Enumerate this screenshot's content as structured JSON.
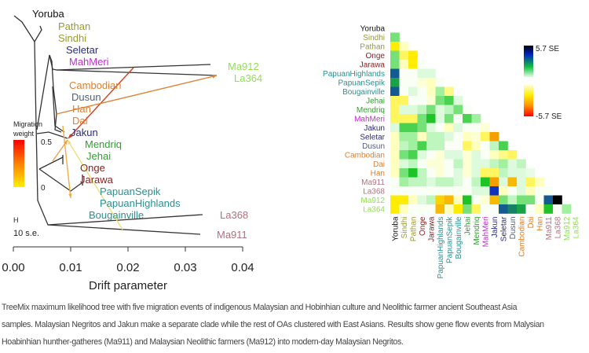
{
  "tree": {
    "leaves": [
      {
        "name": "Yoruba",
        "color": "#111111"
      },
      {
        "name": "Pathan",
        "color": "#9a9a30"
      },
      {
        "name": "Sindhi",
        "color": "#9a9a30"
      },
      {
        "name": "Seletar",
        "color": "#2a2a80"
      },
      {
        "name": "MahMeri",
        "color": "#c030d0"
      },
      {
        "name": "Ma912",
        "color": "#90e050"
      },
      {
        "name": "La364",
        "color": "#90e050"
      },
      {
        "name": "Cambodian",
        "color": "#e08030"
      },
      {
        "name": "Dusun",
        "color": "#506080"
      },
      {
        "name": "Han",
        "color": "#e08030"
      },
      {
        "name": "Dai",
        "color": "#e08030"
      },
      {
        "name": "Jakun",
        "color": "#2a2a80"
      },
      {
        "name": "Mendriq",
        "color": "#30a030"
      },
      {
        "name": "Jehai",
        "color": "#30a030"
      },
      {
        "name": "Onge",
        "color": "#8b2020"
      },
      {
        "name": "Jarawa",
        "color": "#8b2020"
      },
      {
        "name": "PapuanSepik",
        "color": "#2a9090"
      },
      {
        "name": "PapuanHighlands",
        "color": "#2a9090"
      },
      {
        "name": "Bougainville",
        "color": "#2a9090"
      },
      {
        "name": "La368",
        "color": "#b07080"
      },
      {
        "name": "Ma911",
        "color": "#b07080"
      }
    ],
    "migration_legend": {
      "title_line1": "Migration",
      "title_line2": "weight",
      "max_label": "0.5",
      "min_label": "0",
      "colors": [
        "#ff0000",
        "#ff8000",
        "#ffee00"
      ]
    },
    "scale_bar": {
      "marker": "H",
      "label": "10 s.e."
    },
    "x_axis": {
      "label": "Drift parameter",
      "ticks": [
        "0.00",
        "0.01",
        "0.02",
        "0.03",
        "0.04"
      ]
    }
  },
  "heatmap": {
    "labels": [
      "Yoruba",
      "Sindhi",
      "Pathan",
      "Onge",
      "Jarawa",
      "PapuanHighlands",
      "PapuanSepik",
      "Bougainville",
      "Jehai",
      "Mendriq",
      "MahMeri",
      "Jakun",
      "Seletar",
      "Dusun",
      "Cambodian",
      "Dai",
      "Han",
      "Ma911",
      "La368",
      "Ma912",
      "La364"
    ],
    "label_colors": [
      "#111111",
      "#9a9a30",
      "#9a9a30",
      "#8b2020",
      "#8b2020",
      "#2a9090",
      "#2a9090",
      "#2a9090",
      "#30a030",
      "#30a030",
      "#c030d0",
      "#2a2a80",
      "#2a2a80",
      "#506080",
      "#e08030",
      "#e08030",
      "#e08030",
      "#b07080",
      "#b07080",
      "#90e050",
      "#90e050"
    ],
    "scale": {
      "max_label": "5.7 SE",
      "min_label": "-5.7 SE",
      "max": 5.7,
      "min": -5.7
    },
    "residuals": [
      [
        2
      ],
      [
        -1.5,
        -0.5
      ],
      [
        2,
        -1,
        -1.5
      ],
      [
        2,
        -0.5,
        -1.5,
        0
      ],
      [
        4.5,
        0,
        0,
        0.5,
        0.5
      ],
      [
        3.5,
        0,
        0,
        -0.3,
        -0.5,
        0
      ],
      [
        4.5,
        0,
        0.5,
        0,
        -0.5,
        1.5,
        -0.8
      ],
      [
        -1,
        -1,
        0,
        0,
        -0.3,
        2,
        2.5,
        0.5
      ],
      [
        -1,
        0.5,
        0.5,
        1,
        2,
        0.5,
        1,
        2,
        0
      ],
      [
        -1,
        -1,
        -1,
        2,
        3,
        0.5,
        2,
        0,
        2.5,
        1.5
      ],
      [
        0.5,
        2.5,
        2.5,
        2,
        0.5,
        0,
        -0.5,
        0.5,
        0,
        0,
        -0.3
      ],
      [
        -0.5,
        1.5,
        1.5,
        -0.5,
        1,
        1,
        0.5,
        0,
        -0.5,
        -0.3,
        -1,
        -3
      ],
      [
        -0.5,
        1,
        1.5,
        2.5,
        1,
        1,
        0,
        0,
        -1,
        -0.5,
        0,
        1,
        2.5
      ],
      [
        -0.5,
        2,
        2.5,
        0.5,
        0,
        -0.3,
        0.5,
        0.5,
        -0.3,
        0.5,
        0,
        -0.5,
        -0.8,
        -1
      ],
      [
        -0.5,
        0.5,
        1,
        0,
        -0.3,
        -0.3,
        0,
        1,
        -0.3,
        0.5,
        0.5,
        1,
        1.5,
        0.5,
        1
      ],
      [
        -0.5,
        2,
        3,
        1,
        0,
        -0.3,
        0,
        0.5,
        -0.3,
        0.5,
        -1,
        -1,
        1,
        0.5,
        0.5,
        0.3
      ],
      [
        0,
        1.5,
        1,
        1,
        0.5,
        1,
        1,
        0.5,
        0,
        1,
        3,
        -3,
        0.5,
        -2.5,
        0.5,
        -1,
        -0.5
      ],
      [
        0,
        0,
        0,
        0,
        0,
        0,
        0,
        0,
        0,
        0.5,
        0.5,
        5,
        -0.5,
        0,
        0.5,
        -0.5,
        0,
        0
      ],
      [
        -1.5,
        -1.5,
        -0.5,
        0.5,
        1,
        -2,
        -2.5,
        -0.5,
        3,
        0,
        -0.3,
        -2.5,
        2,
        1,
        2,
        2,
        0,
        4.5,
        5.7
      ],
      [
        -1.5,
        -0.5,
        0,
        0,
        0,
        -2.5,
        -0.5,
        -1.5,
        2,
        -1,
        0,
        0,
        4.5,
        4,
        3.5,
        0,
        -0.5,
        3,
        0,
        1.5
      ]
    ]
  },
  "caption": {
    "lines": [
      "TreeMix maximum likelihood tree with five migration events of indigenous Malaysian and Hobinhian culture and Neolithic farmer ancient Southeast Asia",
      "samples. Malaysian Negritos and Jakun make a separate clade while the rest of OAs clustered with East Asians. Results show gene flow events from Malysian",
      "Hoabinhian hunther-gatheres (Ma911) and Malaysian Neolithic farmers (Ma912) into modern-day Malaysian Negritos."
    ]
  }
}
